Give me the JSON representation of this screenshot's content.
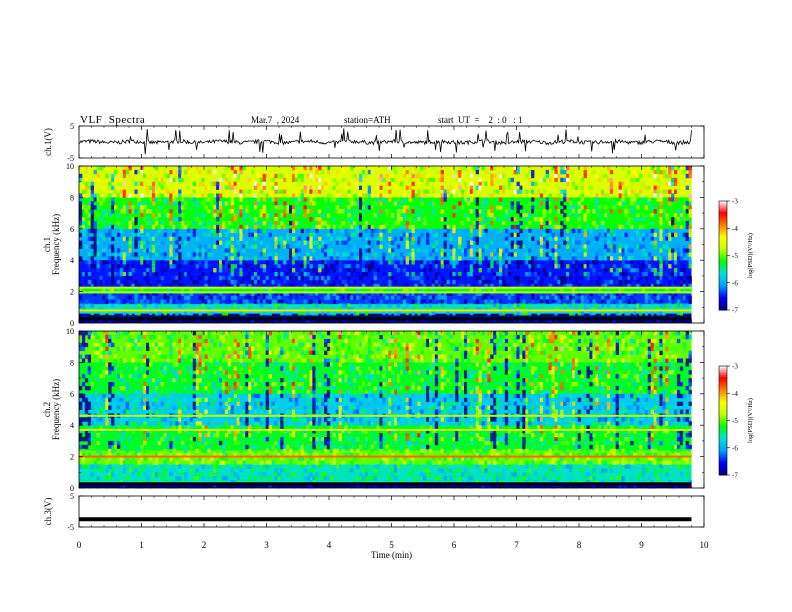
{
  "header": {
    "title": "VLF  Spectra",
    "date": "Mar.7  , 2024",
    "station": "station=ATH",
    "start_ut": "start  UT  =    2  : 0   : 1"
  },
  "colorbar": {
    "label": "log(PSD)(V²/Hz)",
    "ticks": [
      "-3",
      "-4",
      "-5",
      "-6",
      "-7"
    ],
    "range": [
      -7,
      -3
    ],
    "colors": [
      "#000080",
      "#0000ff",
      "#00a0ff",
      "#00e0e0",
      "#00ff00",
      "#c0ff00",
      "#ffff00",
      "#ff8000",
      "#ff0000",
      "#ffffff"
    ]
  },
  "chart_data": [
    {
      "type": "line",
      "panel": "ch1-waveform",
      "ylabel": "ch.1(V)",
      "ylim": [
        -5,
        5
      ],
      "yticks": [
        "5",
        "-5"
      ],
      "xlim": [
        0,
        10
      ],
      "baseline": 0,
      "trace_extent_min": [
        0,
        9.8
      ]
    },
    {
      "type": "heatmap",
      "panel": "ch1-spectrogram",
      "ylabel": [
        "ch.1",
        "Frequency  (kHz)"
      ],
      "ylim": [
        0,
        10
      ],
      "yticks": [
        "10",
        "8",
        "6",
        "4",
        "2",
        "0"
      ],
      "xlim": [
        0,
        10
      ],
      "data_extent_min": [
        0,
        9.8
      ],
      "bands_khz": [
        {
          "range": [
            0,
            0.6
          ],
          "level": -7
        },
        {
          "range": [
            0.6,
            1.2
          ],
          "level": -5.6
        },
        {
          "range": [
            1.2,
            1.9
          ],
          "level": -6.4
        },
        {
          "range": [
            1.9,
            2.2
          ],
          "level": -5.2
        },
        {
          "range": [
            2.2,
            4.0
          ],
          "level": -6.5
        },
        {
          "range": [
            4.0,
            6.0
          ],
          "level": -6.0
        },
        {
          "range": [
            6.0,
            8.0
          ],
          "level": -5.2
        },
        {
          "range": [
            8.0,
            10.0
          ],
          "level": -4.6
        }
      ],
      "lines_khz": [
        {
          "f": 2.25,
          "level": -4.7
        },
        {
          "f": 1.95,
          "level": -4.8
        },
        {
          "f": 0.8,
          "level": -4.2
        }
      ]
    },
    {
      "type": "heatmap",
      "panel": "ch2-spectrogram",
      "ylabel": [
        "ch.2",
        "Frequency  (kHz)"
      ],
      "ylim": [
        0,
        10
      ],
      "yticks": [
        "10",
        "8",
        "6",
        "4",
        "2",
        "0"
      ],
      "xlim": [
        0,
        10
      ],
      "data_extent_min": [
        0,
        9.8
      ],
      "bands_khz": [
        {
          "range": [
            0,
            0.3
          ],
          "level": -7
        },
        {
          "range": [
            0.3,
            1.5
          ],
          "level": -5.6
        },
        {
          "range": [
            1.5,
            2.4
          ],
          "level": -5.0
        },
        {
          "range": [
            2.4,
            4.0
          ],
          "level": -5.3
        },
        {
          "range": [
            4.0,
            6.0
          ],
          "level": -5.8
        },
        {
          "range": [
            6.0,
            8.0
          ],
          "level": -5.3
        },
        {
          "range": [
            8.0,
            10.0
          ],
          "level": -5.0
        }
      ],
      "lines_khz": [
        {
          "f": 2.0,
          "level": -3.8
        },
        {
          "f": 3.7,
          "level": -4.6
        },
        {
          "f": 4.6,
          "level": -4.8
        }
      ]
    },
    {
      "type": "line",
      "panel": "ch3-waveform",
      "ylabel": "ch.3(V)",
      "ylim": [
        -5,
        5
      ],
      "yticks": [
        "5",
        "-5"
      ],
      "xlim": [
        0,
        10
      ],
      "baseline": -2.5,
      "trace_extent_min": [
        0,
        9.8
      ]
    }
  ],
  "xaxis": {
    "label": "Time  (min)",
    "ticks": [
      "0",
      "1",
      "2",
      "3",
      "4",
      "5",
      "6",
      "7",
      "8",
      "9",
      "10"
    ]
  }
}
